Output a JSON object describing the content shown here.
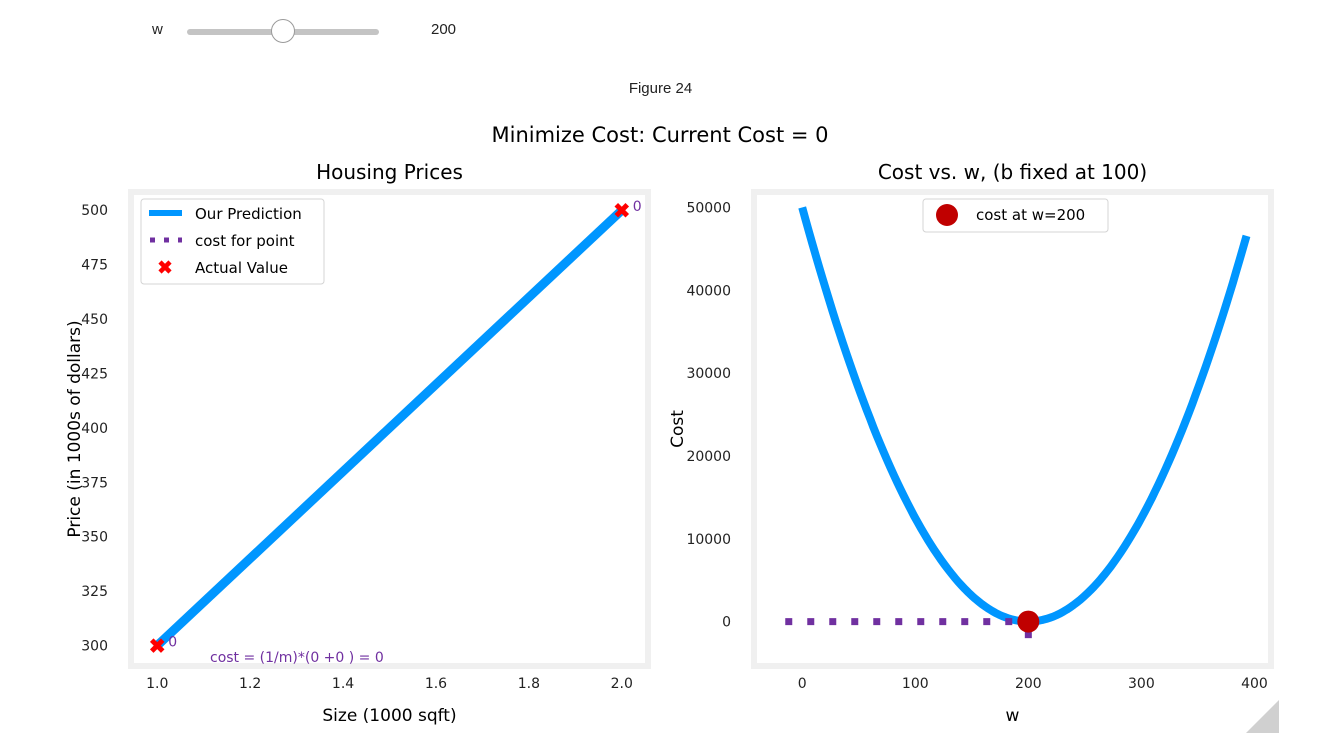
{
  "widget": {
    "label": "w",
    "value": "200",
    "min": 0,
    "max": 400,
    "current": 200
  },
  "figure": {
    "caption": "Figure 24",
    "suptitle": "Minimize Cost: Current Cost = 0"
  },
  "colors": {
    "blue": "#0096FF",
    "red": "#FF0000",
    "darkred": "#C00000",
    "purple": "#7030A0",
    "plotbg": "#F0F0F0"
  },
  "chart_data": [
    {
      "type": "line",
      "title": "Housing Prices",
      "xlabel": "Size (1000 sqft)",
      "ylabel": "Price (in 1000s of dollars)",
      "xlim": [
        0.95,
        2.05
      ],
      "ylim": [
        292,
        507
      ],
      "xticks": [
        1.0,
        1.2,
        1.4,
        1.6,
        1.8,
        2.0
      ],
      "xtick_labels": [
        "1.0",
        "1.2",
        "1.4",
        "1.6",
        "1.8",
        "2.0"
      ],
      "yticks": [
        300,
        325,
        350,
        375,
        400,
        425,
        450,
        475,
        500
      ],
      "ytick_labels": [
        "300",
        "325",
        "350",
        "375",
        "400",
        "425",
        "450",
        "475",
        "500"
      ],
      "series": [
        {
          "name": "Our Prediction",
          "type": "line",
          "x": [
            1.0,
            2.0
          ],
          "y": [
            300,
            500
          ]
        },
        {
          "name": "Actual Value",
          "type": "scatter",
          "x": [
            1.0,
            2.0
          ],
          "y": [
            300,
            500
          ]
        }
      ],
      "legend": {
        "position": "top-left",
        "entries": [
          "Our Prediction",
          "cost for point",
          "Actual Value"
        ]
      },
      "point_labels": [
        "0",
        "0"
      ],
      "annotation": "cost = (1/m)*(0 +0 ) = 0"
    },
    {
      "type": "line",
      "title": "Cost vs. w, (b fixed at 100)",
      "xlabel": "w",
      "ylabel": "Cost",
      "xlim": [
        -40,
        412
      ],
      "ylim": [
        -5000,
        51500
      ],
      "xticks": [
        0,
        100,
        200,
        300,
        400
      ],
      "xtick_labels": [
        "0",
        "100",
        "200",
        "300",
        "400"
      ],
      "yticks": [
        0,
        10000,
        20000,
        30000,
        40000,
        50000
      ],
      "ytick_labels": [
        "0",
        "10000",
        "20000",
        "30000",
        "40000",
        "50000"
      ],
      "curve": {
        "x_start": 0,
        "x_end": 393,
        "formula": "1.25*(w-200)^2"
      },
      "series": [
        {
          "name": "cost at w=200",
          "type": "scatter",
          "x": [
            200
          ],
          "y": [
            0
          ]
        }
      ],
      "dotted_line": {
        "x_from": -15,
        "x_to": 200,
        "y": 0
      },
      "dotted_drop": {
        "x": 200,
        "y_from": 0,
        "y_to": -2000
      },
      "legend": {
        "position": "upper-center",
        "entries": [
          "cost at w=200"
        ]
      }
    }
  ]
}
